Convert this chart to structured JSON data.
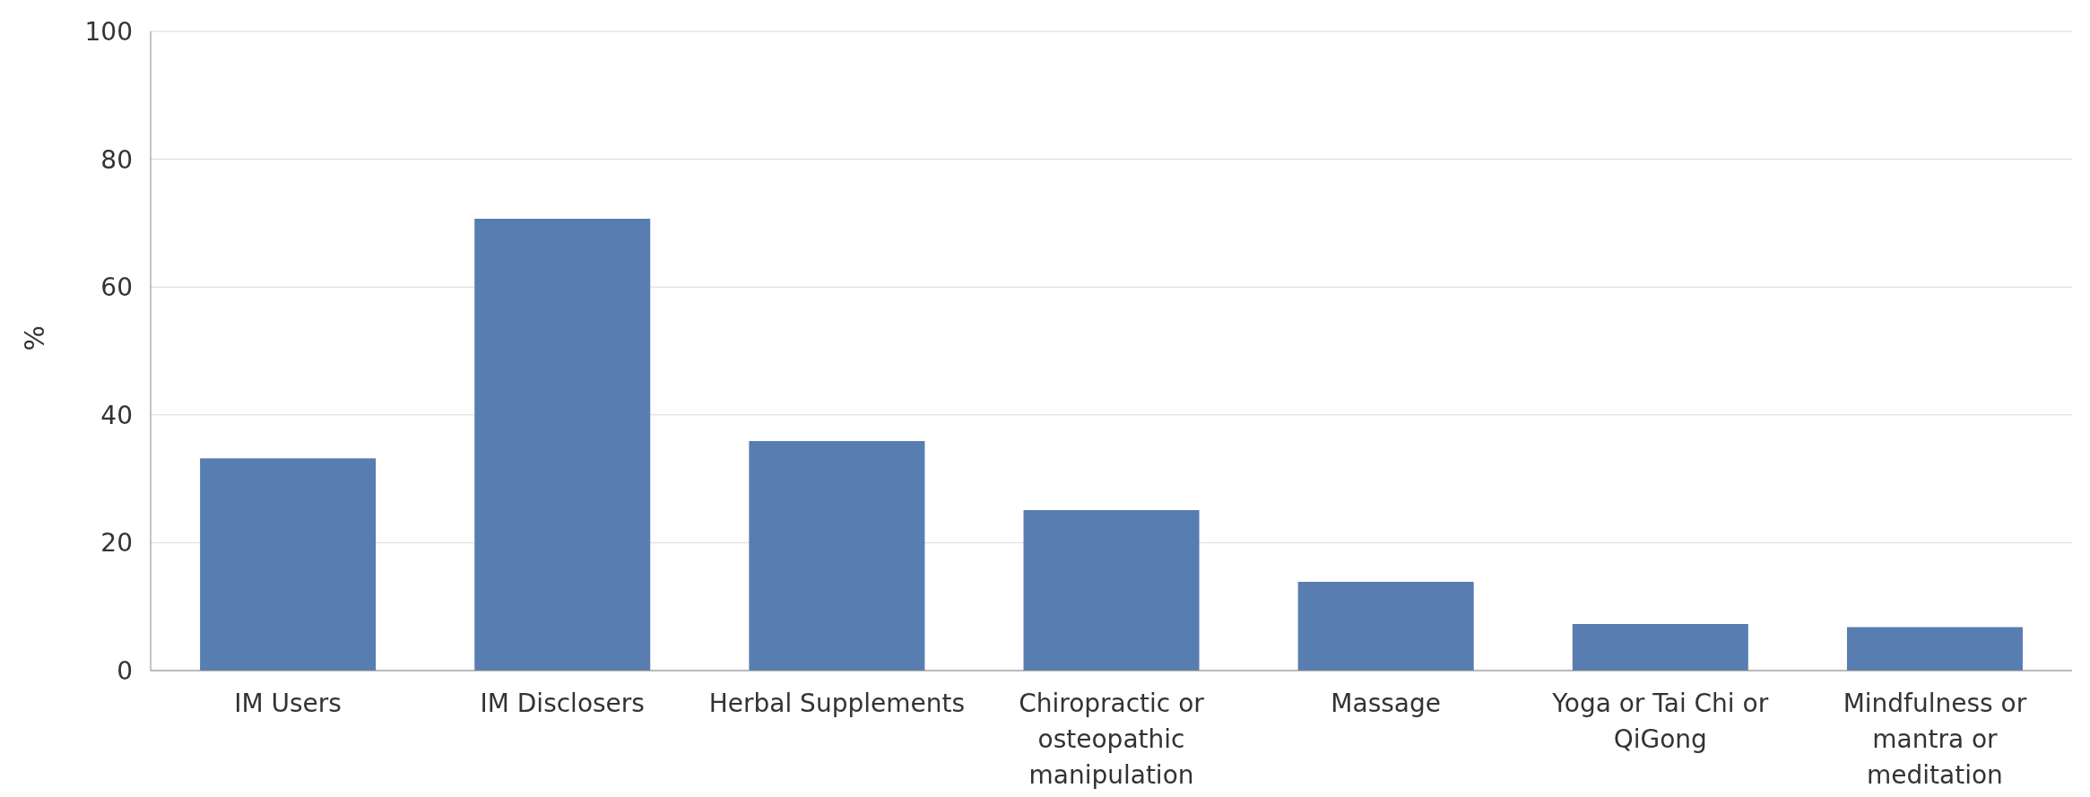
{
  "chart_data": {
    "type": "bar",
    "ylabel": "%",
    "categories": [
      "IM Users",
      "IM Disclosers",
      "Herbal Supplements",
      "Chiropractic or osteopathic manipulation",
      "Massage",
      "Yoga or Tai Chi or QiGong",
      "Mindfulness or mantra or meditation"
    ],
    "values": [
      33.2,
      70.7,
      35.9,
      25.1,
      13.9,
      7.3,
      6.8
    ],
    "color": "#587db0",
    "ylim": [
      0,
      100
    ],
    "yticks": [
      0,
      20,
      40,
      60,
      80,
      100
    ],
    "grid": "y",
    "legend": false
  }
}
